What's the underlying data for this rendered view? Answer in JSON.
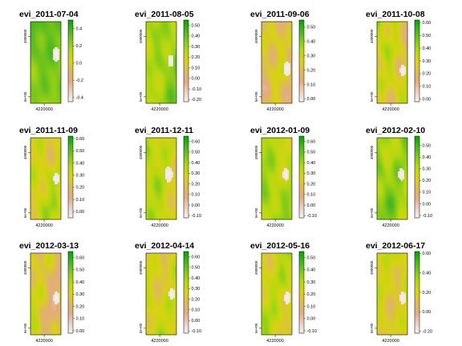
{
  "chart_data": {
    "type": "heatmap",
    "layout": {
      "rows": 3,
      "cols": 4
    },
    "x_tick_label": "4220000",
    "y_tick_labels": [
      "4900000",
      "5e+05"
    ],
    "colormap": [
      "#f2f2f2",
      "#eacfc0",
      "#e3ab7f",
      "#dcbb55",
      "#d8d212",
      "#b5d80e",
      "#7ec81a",
      "#46b51e",
      "#00a600"
    ],
    "panels": [
      {
        "title": "evi_2011-07-04",
        "ticks": [
          "0.4",
          "0.2",
          "0.0",
          "-0.2",
          "-0.4"
        ],
        "min": -0.45,
        "max": 0.5,
        "mean": 0.28,
        "spread": 0.12,
        "bare": {
          "cx": 0.85,
          "cy": 0.4,
          "r": 0.12
        }
      },
      {
        "title": "evi_2011-08-05",
        "ticks": [
          "0.50",
          "0.40",
          "0.30",
          "0.20",
          "0.10",
          "0.00",
          "-0.10",
          "-0.20"
        ],
        "min": -0.22,
        "max": 0.55,
        "mean": 0.28,
        "spread": 0.12,
        "bare": {
          "cx": 0.82,
          "cy": 0.48,
          "r": 0.1
        }
      },
      {
        "title": "evi_2011-09-06",
        "ticks": [
          "0.50",
          "0.40",
          "0.30",
          "0.20",
          "0.10",
          "0.00"
        ],
        "min": -0.02,
        "max": 0.55,
        "mean": 0.18,
        "spread": 0.13,
        "bare": {
          "cx": 0.85,
          "cy": 0.58,
          "r": 0.12
        }
      },
      {
        "title": "evi_2011-10-08",
        "ticks": [
          "0.60",
          "0.50",
          "0.40",
          "0.30",
          "0.20",
          "0.10",
          "0.00"
        ],
        "min": -0.02,
        "max": 0.62,
        "mean": 0.3,
        "spread": 0.15,
        "bare": {
          "cx": 0.85,
          "cy": 0.6,
          "r": 0.1
        }
      },
      {
        "title": "evi_2011-11-09",
        "ticks": [
          "0.60",
          "0.50",
          "0.40",
          "0.30",
          "0.20",
          "0.10",
          "0.00"
        ],
        "min": -0.05,
        "max": 0.62,
        "mean": 0.28,
        "spread": 0.14,
        "bare": {
          "cx": 0.85,
          "cy": 0.5,
          "r": 0.1
        }
      },
      {
        "title": "evi_2011-12-11",
        "ticks": [
          "0.60",
          "0.50",
          "0.40",
          "0.30",
          "0.20",
          "0.10",
          "0.00",
          "-0.10"
        ],
        "min": -0.12,
        "max": 0.65,
        "mean": 0.3,
        "spread": 0.13,
        "bare": {
          "cx": 0.75,
          "cy": 0.45,
          "r": 0.13
        }
      },
      {
        "title": "evi_2012-01-09",
        "ticks": [
          "0.60",
          "0.50",
          "0.40",
          "0.30",
          "0.20",
          "0.10",
          "0.00",
          "-0.10"
        ],
        "min": -0.12,
        "max": 0.65,
        "mean": 0.38,
        "spread": 0.12,
        "bare": {
          "cx": 0.8,
          "cy": 0.45,
          "r": 0.1
        }
      },
      {
        "title": "evi_2012-02-10",
        "ticks": [
          "0.50",
          "0.40",
          "0.30",
          "0.20",
          "0.10",
          "0.00",
          "-0.10"
        ],
        "min": -0.12,
        "max": 0.58,
        "mean": 0.35,
        "spread": 0.12,
        "bare": {
          "cx": 0.8,
          "cy": 0.45,
          "r": 0.1
        }
      },
      {
        "title": "evi_2012-03-13",
        "ticks": [
          "0.60",
          "0.50",
          "0.40",
          "0.30",
          "0.20",
          "0.10",
          "0.00"
        ],
        "min": -0.02,
        "max": 0.65,
        "mean": 0.27,
        "spread": 0.14,
        "bare": {
          "cx": 0.85,
          "cy": 0.55,
          "r": 0.1
        }
      },
      {
        "title": "evi_2012-04-14",
        "ticks": [
          "0.60",
          "0.50",
          "0.40",
          "0.30",
          "0.20",
          "0.10",
          "0.00",
          "-0.10"
        ],
        "min": -0.12,
        "max": 0.65,
        "mean": 0.3,
        "spread": 0.13,
        "bare": {
          "cx": 0.85,
          "cy": 0.5,
          "r": 0.1
        }
      },
      {
        "title": "evi_2012-05-16",
        "ticks": [
          "0.50",
          "0.40",
          "0.30",
          "0.20",
          "0.10",
          "0.00",
          "-0.10"
        ],
        "min": -0.12,
        "max": 0.55,
        "mean": 0.25,
        "spread": 0.12,
        "bare": {
          "cx": 0.85,
          "cy": 0.55,
          "r": 0.1
        }
      },
      {
        "title": "evi_2012-06-17",
        "ticks": [
          "0.60",
          "0.40",
          "0.20",
          "0.00",
          "-0.20"
        ],
        "min": -0.22,
        "max": 0.62,
        "mean": 0.22,
        "spread": 0.13,
        "bare": {
          "cx": 0.85,
          "cy": 0.55,
          "r": 0.1
        }
      }
    ]
  }
}
